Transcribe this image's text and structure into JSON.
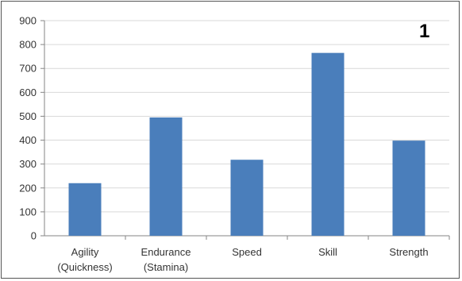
{
  "panel_label": "1",
  "chart_data": {
    "type": "bar",
    "categories": [
      [
        "Agility",
        "(Quickness)"
      ],
      [
        "Endurance",
        "(Stamina)"
      ],
      [
        "Speed"
      ],
      [
        "Skill"
      ],
      [
        "Strength"
      ]
    ],
    "values": [
      220,
      495,
      318,
      765,
      398
    ],
    "ylim": [
      0,
      900
    ],
    "yticks": [
      0,
      100,
      200,
      300,
      400,
      500,
      600,
      700,
      800,
      900
    ],
    "grid": true,
    "legend": "none",
    "colors": {
      "bar": "#4a7ebb",
      "grid": "#d9d9d9",
      "axis": "#868686"
    }
  }
}
